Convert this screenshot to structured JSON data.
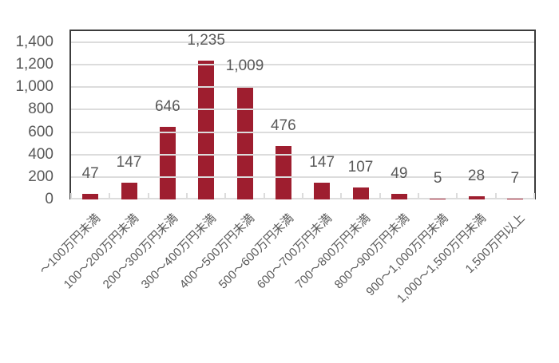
{
  "chart_data": {
    "type": "bar",
    "title": "",
    "xlabel": "",
    "ylabel": "",
    "categories": [
      "～100万円未満",
      "100～200万円未満",
      "200～300万円未満",
      "300～400万円未満",
      "400～500万円未満",
      "500～600万円未満",
      "600～700万円未満",
      "700～800万円未満",
      "800～900万円未満",
      "900～1,000万円未満",
      "1,000～1,500万円未満",
      "1,500万円以上"
    ],
    "values": [
      47,
      147,
      646,
      1235,
      1009,
      476,
      147,
      107,
      49,
      5,
      28,
      7
    ],
    "value_labels": [
      "47",
      "147",
      "646",
      "1,235",
      "1,009",
      "476",
      "147",
      "107",
      "49",
      "5",
      "28",
      "7"
    ],
    "ylim": [
      0,
      1500
    ],
    "ytick_values": [
      0,
      200,
      400,
      600,
      800,
      1000,
      1200,
      1400
    ],
    "ytick_labels": [
      "0",
      "200",
      "400",
      "600",
      "800",
      "1,000",
      "1,200",
      "1,400"
    ],
    "grid": true,
    "legend": "none",
    "xlabel_rotation_deg": -45,
    "colors": {
      "bar": "#9E1E2F",
      "gridline": "#DCDCDC",
      "plot_border": "#3C3C3C",
      "text": "#595959",
      "background": "#FFFFFF"
    }
  }
}
